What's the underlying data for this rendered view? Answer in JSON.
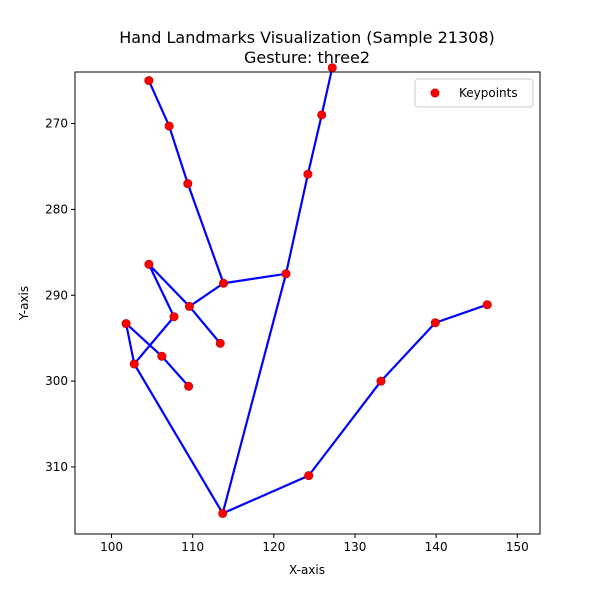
{
  "chart_data": {
    "type": "scatter",
    "title": "Hand Landmarks Visualization (Sample 21308)",
    "subtitle": "Gesture: three2",
    "xlabel": "X-axis",
    "ylabel": "Y-axis",
    "xlim": [
      95.5,
      152.8
    ],
    "ylim": [
      264.0,
      317.8
    ],
    "y_inverted": true,
    "grid": false,
    "x_ticks": [
      100,
      110,
      120,
      130,
      140,
      150
    ],
    "y_ticks": [
      270,
      280,
      290,
      300,
      310
    ],
    "legend": {
      "position": "top-right",
      "entries": [
        "Keypoints"
      ]
    },
    "series": [
      {
        "name": "Keypoints",
        "points": [
          [
            113.7,
            315.4
          ],
          [
            124.3,
            311.0
          ],
          [
            133.2,
            300.0
          ],
          [
            139.9,
            293.2
          ],
          [
            146.3,
            291.1
          ],
          [
            121.5,
            287.5
          ],
          [
            124.2,
            275.9
          ],
          [
            125.9,
            269.0
          ],
          [
            127.2,
            263.5
          ],
          [
            113.8,
            288.6
          ],
          [
            109.4,
            277.0
          ],
          [
            107.1,
            270.3
          ],
          [
            104.6,
            265.0
          ],
          [
            109.6,
            291.3
          ],
          [
            104.6,
            286.4
          ],
          [
            107.7,
            292.5
          ],
          [
            113.4,
            295.6
          ],
          [
            101.8,
            293.3
          ],
          [
            106.2,
            297.1
          ],
          [
            102.8,
            298.0
          ],
          [
            109.5,
            300.6
          ]
        ]
      }
    ],
    "connections": [
      [
        0,
        1
      ],
      [
        1,
        2
      ],
      [
        2,
        3
      ],
      [
        3,
        4
      ],
      [
        0,
        5
      ],
      [
        5,
        6
      ],
      [
        6,
        7
      ],
      [
        7,
        8
      ],
      [
        5,
        9
      ],
      [
        9,
        10
      ],
      [
        10,
        11
      ],
      [
        11,
        12
      ],
      [
        9,
        13
      ],
      [
        13,
        14
      ],
      [
        14,
        15
      ],
      [
        15,
        19
      ],
      [
        13,
        16
      ],
      [
        0,
        19
      ],
      [
        19,
        17
      ],
      [
        17,
        18
      ],
      [
        18,
        20
      ]
    ],
    "colors": {
      "point": "#ff0000",
      "point_edge": "#b00000",
      "line": "#0000ff"
    }
  }
}
